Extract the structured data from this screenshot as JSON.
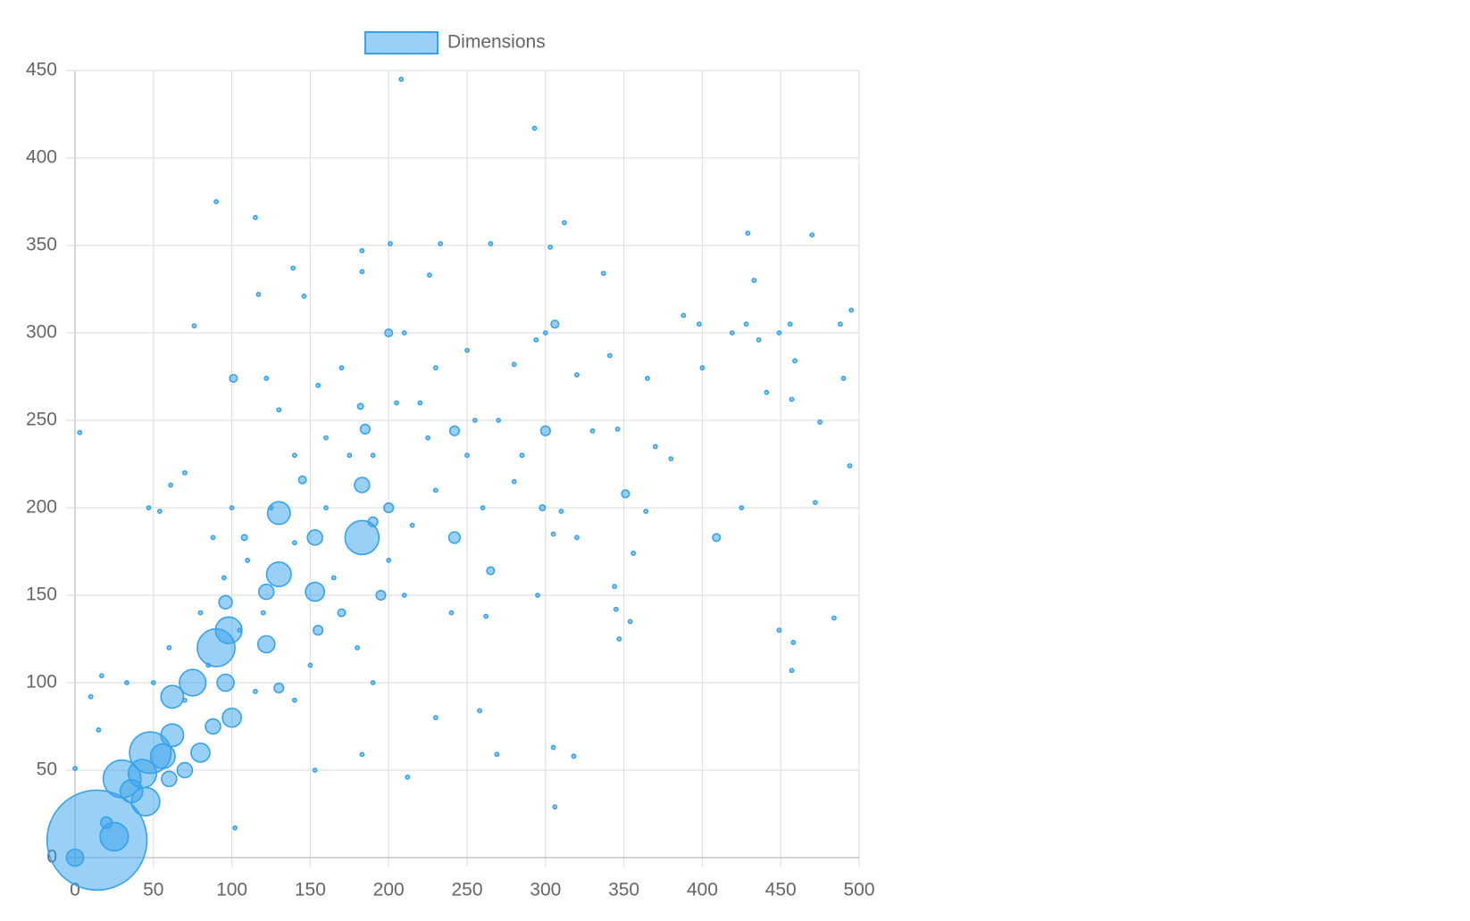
{
  "chart_data": {
    "type": "bubble",
    "xlim": [
      0,
      500
    ],
    "xticks": [
      0,
      50,
      100,
      150,
      200,
      250,
      300,
      350,
      400,
      450,
      500
    ],
    "ylim": [
      0,
      450
    ],
    "yticks": [
      0,
      50,
      100,
      150,
      200,
      250,
      300,
      350,
      400,
      450
    ],
    "grid": true,
    "legend": "top",
    "series": [
      {
        "name": "Dimensions",
        "color": "#36a2eb",
        "x": [
          208,
          293,
          90,
          115,
          312,
          429,
          470,
          233,
          201,
          265,
          183,
          303,
          139,
          226,
          337,
          183,
          433,
          117,
          146,
          495,
          76,
          306,
          488,
          456,
          398,
          428,
          449,
          419,
          300,
          200,
          101,
          122,
          490,
          3,
          459,
          400,
          436,
          388,
          365,
          341,
          294,
          280,
          250,
          230,
          210,
          300,
          242,
          182,
          255,
          190,
          220,
          170,
          155,
          130,
          475,
          457,
          441,
          380,
          425,
          409,
          351,
          364,
          370,
          472,
          494,
          346,
          330,
          320,
          449,
          458,
          457,
          484,
          344,
          345,
          347,
          354,
          356,
          242,
          265,
          298,
          310,
          280,
          260,
          320,
          305,
          295,
          262,
          240,
          230,
          258,
          269,
          305,
          318,
          306,
          212,
          183,
          153,
          102,
          0,
          10,
          17,
          33,
          15,
          47,
          54,
          61,
          70,
          88,
          100,
          108,
          130,
          183,
          183,
          153,
          130,
          153,
          122,
          96,
          98,
          90,
          122,
          96,
          75,
          62,
          100,
          88,
          80,
          62,
          56,
          48,
          43,
          30,
          45,
          36,
          25,
          14,
          0,
          20,
          60,
          70,
          130,
          155,
          170,
          200,
          195,
          185,
          145,
          190,
          110,
          140,
          160,
          175,
          120,
          105,
          85,
          70,
          150,
          165,
          200,
          215,
          230,
          250,
          140,
          115,
          180,
          210,
          125,
          95,
          60,
          50,
          80,
          225,
          205,
          160,
          140,
          270,
          285,
          190
        ],
        "values": [
          445,
          417,
          375,
          366,
          363,
          357,
          356,
          351,
          351,
          351,
          347,
          349,
          337,
          333,
          334,
          335,
          330,
          322,
          321,
          313,
          304,
          305,
          305,
          305,
          305,
          305,
          300,
          300,
          300,
          300,
          274,
          274,
          274,
          243,
          284,
          280,
          296,
          310,
          274,
          287,
          296,
          282,
          290,
          280,
          300,
          244,
          244,
          258,
          250,
          230,
          260,
          280,
          270,
          256,
          249,
          262,
          266,
          228,
          200,
          183,
          208,
          198,
          235,
          203,
          224,
          245,
          244,
          276,
          130,
          123,
          107,
          137,
          155,
          142,
          125,
          135,
          174,
          183,
          164,
          200,
          198,
          215,
          200,
          183,
          185,
          150,
          138,
          140,
          80,
          84,
          59,
          63,
          58,
          29,
          46,
          59,
          50,
          17,
          51,
          92,
          104,
          100,
          73,
          200,
          198,
          213,
          220,
          183,
          200,
          183,
          197,
          213,
          183,
          183,
          162,
          152,
          152,
          146,
          130,
          120,
          122,
          100,
          100,
          92,
          80,
          75,
          60,
          70,
          58,
          60,
          48,
          45,
          32,
          38,
          12,
          10,
          0,
          20,
          45,
          50,
          97,
          130,
          140,
          200,
          150,
          245,
          216,
          192,
          170,
          180,
          200,
          230,
          140,
          130,
          110,
          90,
          110,
          160,
          170,
          190,
          210,
          230,
          90,
          95,
          120,
          150,
          200,
          160,
          120,
          100,
          140,
          240,
          260,
          240,
          230,
          250,
          230,
          100
        ],
        "sizes": [
          2,
          2,
          2,
          2,
          2,
          2,
          2,
          2,
          2,
          2,
          2,
          2,
          2,
          2,
          2,
          2,
          2,
          2,
          2,
          2,
          2,
          4,
          2,
          2,
          2,
          2,
          2,
          2,
          2,
          4,
          4,
          2,
          2,
          2,
          2,
          2,
          2,
          2,
          2,
          2,
          2,
          2,
          2,
          2,
          2,
          5,
          5,
          3,
          2,
          2,
          2,
          2,
          2,
          2,
          2,
          2,
          2,
          2,
          2,
          4,
          4,
          2,
          2,
          2,
          2,
          2,
          2,
          2,
          2,
          2,
          2,
          2,
          2,
          2,
          2,
          2,
          2,
          6,
          4,
          3,
          2,
          2,
          2,
          2,
          2,
          2,
          2,
          2,
          2,
          2,
          2,
          2,
          2,
          2,
          2,
          2,
          2,
          2,
          2,
          2,
          2,
          2,
          2,
          2,
          2,
          2,
          2,
          2,
          2,
          3,
          12,
          8,
          18,
          8,
          13,
          10,
          8,
          7,
          14,
          20,
          9,
          9,
          14,
          12,
          10,
          8,
          10,
          12,
          13,
          22,
          15,
          20,
          15,
          12,
          15,
          53,
          9,
          6,
          8,
          8,
          5,
          5,
          4,
          5,
          5,
          5,
          4,
          5,
          2,
          2,
          2,
          2,
          2,
          2,
          2,
          2,
          2,
          2,
          2,
          2,
          2,
          2,
          2,
          2,
          2,
          2,
          2,
          2,
          2,
          2,
          2,
          2,
          2,
          2,
          2,
          2,
          2,
          2
        ]
      }
    ]
  }
}
